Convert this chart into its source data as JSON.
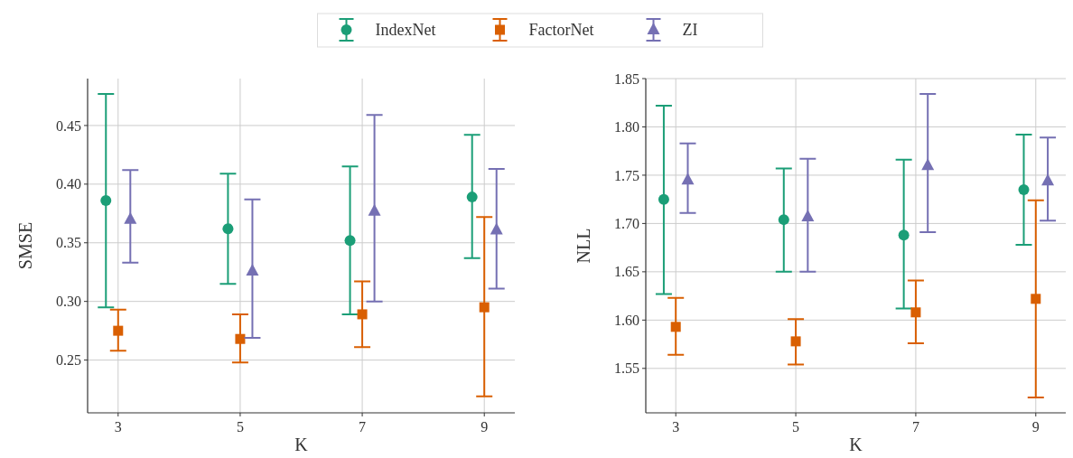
{
  "chart_data": [
    {
      "type": "scatter",
      "xlabel": "K",
      "ylabel": "SMSE",
      "xlim": [
        2.5,
        9.5
      ],
      "xticks": [
        3,
        5,
        7,
        9
      ],
      "ylim": [
        0.205,
        0.49
      ],
      "yticks": [
        0.25,
        {
          "value": 0.3,
          "label": "0.30"
        },
        0.35,
        {
          "value": 0.4,
          "label": "0.40"
        },
        0.45
      ],
      "grid": true,
      "legend": "top",
      "series": [
        {
          "name": "IndexNet",
          "color": "#1b9e77",
          "marker": "circle",
          "x": [
            2.8,
            4.8,
            6.8,
            8.8
          ],
          "values": [
            0.386,
            0.362,
            0.352,
            0.389
          ],
          "errors": [
            [
              0.295,
              0.477
            ],
            [
              0.315,
              0.409
            ],
            [
              0.289,
              0.415
            ],
            [
              0.337,
              0.442
            ]
          ]
        },
        {
          "name": "FactorNet",
          "color": "#d95f02",
          "marker": "square",
          "x": [
            3,
            5,
            7,
            9
          ],
          "values": [
            0.275,
            0.268,
            0.289,
            0.295
          ],
          "errors": [
            [
              0.258,
              0.293
            ],
            [
              0.248,
              0.289
            ],
            [
              0.261,
              0.317
            ],
            [
              0.219,
              0.372
            ]
          ]
        },
        {
          "name": "ZI",
          "color": "#7570b3",
          "marker": "triangle",
          "x": [
            3.2,
            5.2,
            7.2,
            9.2
          ],
          "values": [
            0.37,
            0.326,
            0.377,
            0.361
          ],
          "errors": [
            [
              0.333,
              0.412
            ],
            [
              0.269,
              0.387
            ],
            [
              0.3,
              0.459
            ],
            [
              0.311,
              0.413
            ]
          ]
        }
      ]
    },
    {
      "type": "scatter",
      "xlabel": "K",
      "ylabel": "NLL",
      "xlim": [
        2.5,
        9.5
      ],
      "xticks": [
        3,
        5,
        7,
        9
      ],
      "ylim": [
        1.504,
        1.85
      ],
      "yticks": [
        1.55,
        {
          "value": 1.6,
          "label": "1.60"
        },
        1.65,
        {
          "value": 1.7,
          "label": "1.70"
        },
        1.75,
        {
          "value": 1.8,
          "label": "1.80"
        },
        1.85
      ],
      "grid": true,
      "series": [
        {
          "color": "#1b9e77",
          "marker": "circle",
          "x": [
            2.8,
            4.8,
            6.8,
            8.8
          ],
          "values": [
            1.725,
            1.704,
            1.688,
            1.735
          ],
          "errors": [
            [
              1.627,
              1.822
            ],
            [
              1.65,
              1.757
            ],
            [
              1.612,
              1.766
            ],
            [
              1.678,
              1.792
            ]
          ]
        },
        {
          "color": "#d95f02",
          "marker": "square",
          "x": [
            3,
            5,
            7,
            9
          ],
          "values": [
            1.593,
            1.578,
            1.608,
            1.622
          ],
          "errors": [
            [
              1.564,
              1.623
            ],
            [
              1.554,
              1.601
            ],
            [
              1.576,
              1.641
            ],
            [
              1.52,
              1.724
            ]
          ]
        },
        {
          "color": "#7570b3",
          "marker": "triangle",
          "x": [
            3.2,
            5.2,
            7.2,
            9.2
          ],
          "values": [
            1.745,
            1.707,
            1.76,
            1.744
          ],
          "errors": [
            [
              1.711,
              1.783
            ],
            [
              1.65,
              1.767
            ],
            [
              1.691,
              1.834
            ],
            [
              1.703,
              1.789
            ]
          ]
        }
      ]
    }
  ]
}
